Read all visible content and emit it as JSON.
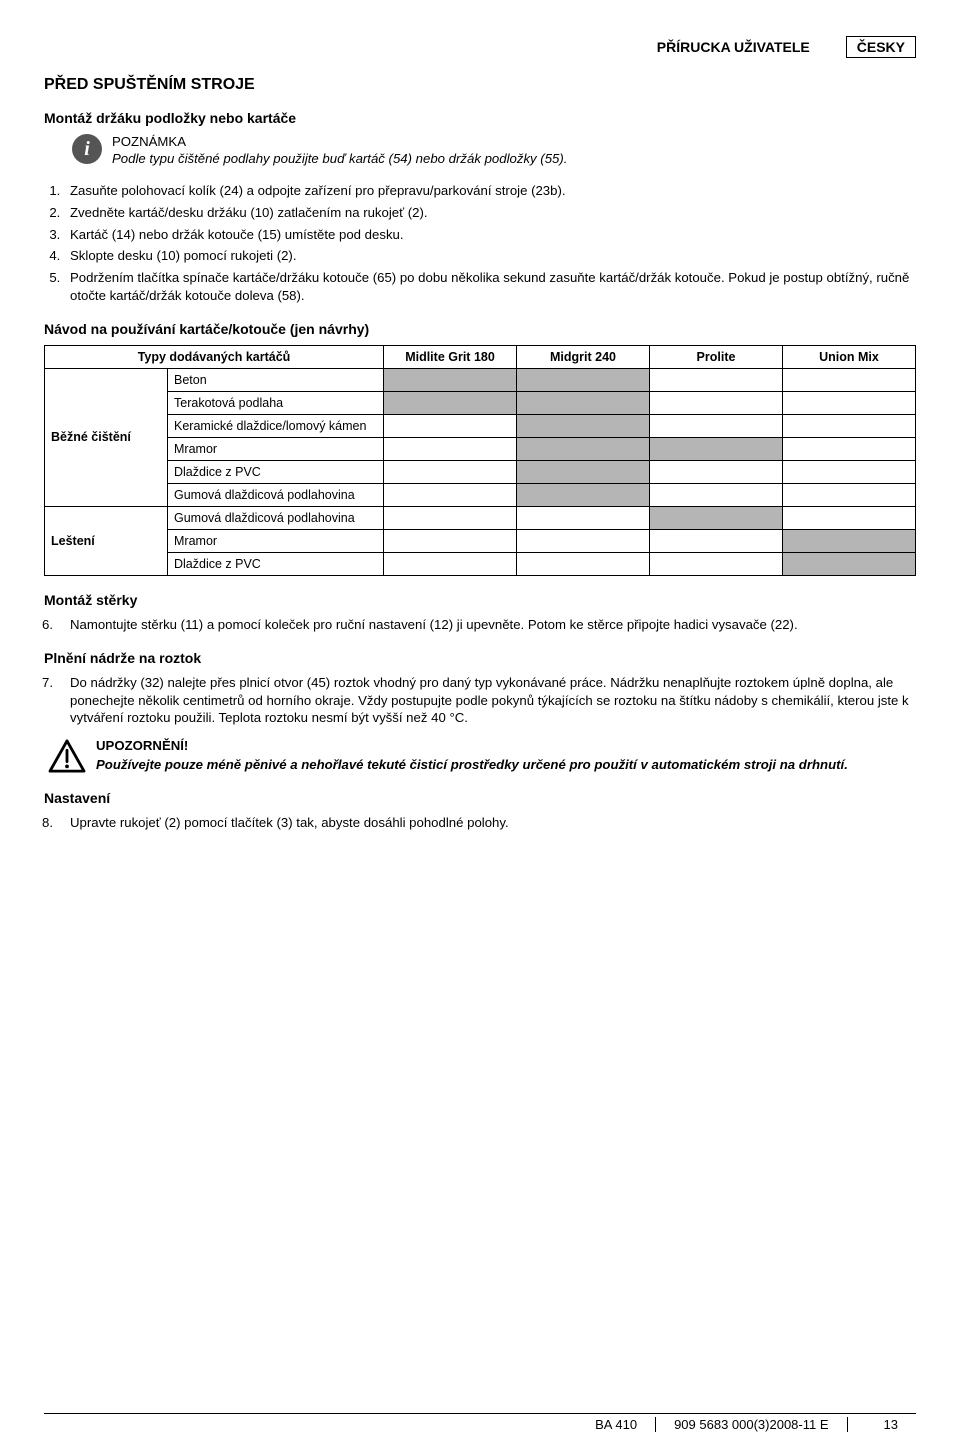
{
  "header": {
    "manual_title": "PŘÍRUCKA UŽIVATELE",
    "language": "ČESKY"
  },
  "section": {
    "before_start": {
      "heading": "PŘED SPUŠTĚNÍM STROJE",
      "subheading": "Montáž držáku podložky nebo kartáče",
      "note_label": "POZNÁMKA",
      "note_body": "Podle typu čištěné podlahy použijte buď kartáč (54) nebo držák podložky (55).",
      "steps": [
        "Zasuňte polohovací kolík (24) a odpojte zařízení pro přepravu/parkování stroje (23b).",
        "Zvedněte kartáč/desku držáku (10) zatlačením na rukojeť (2).",
        "Kartáč (14) nebo držák kotouče (15) umístěte pod desku.",
        "Sklopte desku (10) pomocí rukojeti (2).",
        "Podržením tlačítka spínače kartáče/držáku kotouče (65) po dobu několika sekund zasuňte kartáč/držák kotouče. Pokud je postup obtížný, ručně otočte kartáč/držák kotouče doleva (58)."
      ],
      "guide_heading": "Návod na používání kartáče/kotouče (jen návrhy)"
    },
    "brush_table": {
      "header_brush": "Typy dodávaných kartáčů",
      "cols": [
        "Midlite Grit 180",
        "Midgrit 240",
        "Prolite",
        "Union Mix"
      ],
      "groups": [
        {
          "label": "Běžné čištění",
          "rows": [
            {
              "name": "Beton",
              "fill": [
                true,
                true,
                false,
                false
              ]
            },
            {
              "name": "Terakotová podlaha",
              "fill": [
                true,
                true,
                false,
                false
              ]
            },
            {
              "name": "Keramické dlaždice/lomový kámen",
              "fill": [
                false,
                true,
                false,
                false
              ]
            },
            {
              "name": "Mramor",
              "fill": [
                false,
                true,
                true,
                false
              ]
            },
            {
              "name": "Dlaždice z PVC",
              "fill": [
                false,
                true,
                false,
                false
              ]
            },
            {
              "name": "Gumová dlaždicová podlahovina",
              "fill": [
                false,
                true,
                false,
                false
              ]
            }
          ]
        },
        {
          "label": "Leštení",
          "rows": [
            {
              "name": "Gumová dlaždicová podlahovina",
              "fill": [
                false,
                false,
                true,
                false
              ]
            },
            {
              "name": "Mramor",
              "fill": [
                false,
                false,
                false,
                true
              ]
            },
            {
              "name": "Dlaždice z PVC",
              "fill": [
                false,
                false,
                false,
                true
              ]
            }
          ]
        }
      ],
      "gray_color": "#b5b5b5"
    },
    "squeegee": {
      "heading": "Montáž stěrky",
      "step": "Namontujte stěrku (11) a pomocí koleček pro ruční nastavení (12) ji upevněte. Potom ke stěrce připojte hadici vysavače (22)."
    },
    "fill_tank": {
      "heading": "Plnění nádrže na roztok",
      "step": "Do nádržky (32) nalejte přes plnicí otvor (45) roztok vhodný pro daný typ vykonávané práce. Nádržku nenaplňujte roztokem úplně doplna, ale ponechejte několik centimetrů od horního okraje. Vždy postupujte podle pokynů týkajících se roztoku na štítku nádoby s chemikálií, kterou jste k vytváření roztoku použili. Teplota roztoku nesmí být vyšší než 40 °C.",
      "warn_title": "UPOZORNĚNÍ!",
      "warn_body": "Používejte pouze méně pěnivé a nehořlavé tekuté čisticí prostředky určené pro použití v automatickém stroji na drhnutí."
    },
    "adjust": {
      "heading": "Nastavení",
      "step": "Upravte rukojeť (2) pomocí tlačítek (3) tak, abyste dosáhli pohodlné polohy."
    }
  },
  "footer": {
    "model": "BA 410",
    "doc_ref": "909 5683 000(3)2008-11 E",
    "page": "13"
  }
}
